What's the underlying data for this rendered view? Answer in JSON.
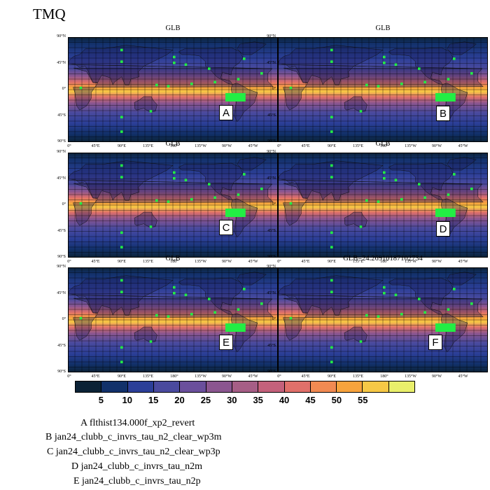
{
  "title": "TMQ",
  "panels": [
    {
      "id": "A",
      "title": "GLB",
      "letter": "A"
    },
    {
      "id": "B",
      "title": "GLB",
      "letter": "B"
    },
    {
      "id": "C",
      "title": "GLB",
      "letter": "C"
    },
    {
      "id": "D",
      "title": "GLB",
      "letter": "D"
    },
    {
      "id": "E",
      "title": "GLB",
      "letter": "E"
    },
    {
      "id": "F",
      "title": "GLB=24.26910187102734",
      "letter": "F"
    }
  ],
  "lat_labels": [
    "90°N",
    "45°N",
    "0°",
    "45°S",
    "90°S"
  ],
  "lon_labels": [
    "0°",
    "45°E",
    "90°E",
    "135°E",
    "180°",
    "135°W",
    "90°W",
    "45°W"
  ],
  "colorbar": {
    "colors": [
      "#0b2236",
      "#12316a",
      "#2c3f98",
      "#4a4a9e",
      "#6a4f9c",
      "#8b5690",
      "#a65e86",
      "#c4617b",
      "#e0706a",
      "#f18a52",
      "#f7a33d",
      "#f6c846",
      "#e9ef6b"
    ],
    "labels": [
      "5",
      "10",
      "15",
      "20",
      "25",
      "30",
      "35",
      "40",
      "45",
      "50",
      "55"
    ]
  },
  "legend": [
    "A  flthist134.000f_xp2_revert",
    "B  jan24_clubb_c_invrs_tau_n2_clear_wp3m",
    "C  jan24_clubb_c_invrs_tau_n2_clear_wp3p",
    "D  jan24_clubb_c_invrs_tau_n2m",
    "E  jan24_clubb_c_invrs_tau_n2p"
  ]
}
